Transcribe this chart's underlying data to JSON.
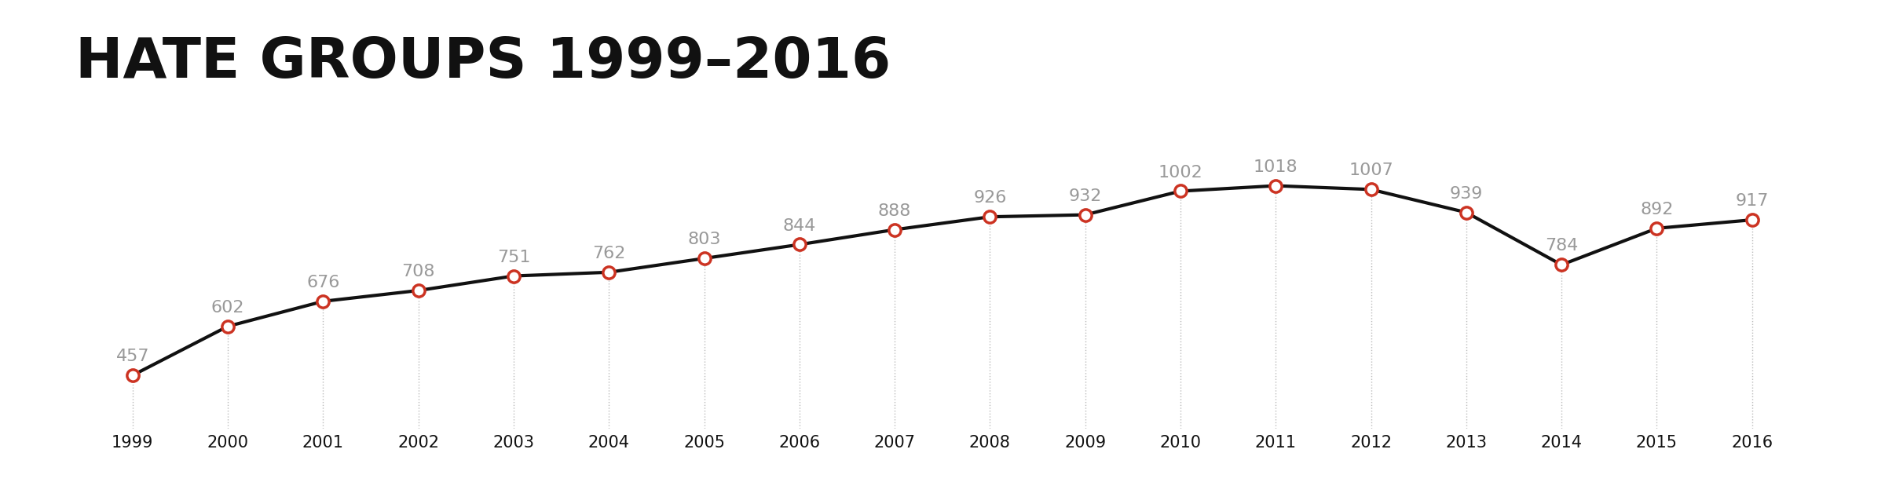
{
  "title": "HATE GROUPS 1999–2016",
  "years": [
    1999,
    2000,
    2001,
    2002,
    2003,
    2004,
    2005,
    2006,
    2007,
    2008,
    2009,
    2010,
    2011,
    2012,
    2013,
    2014,
    2015,
    2016
  ],
  "values": [
    457,
    602,
    676,
    708,
    751,
    762,
    803,
    844,
    888,
    926,
    932,
    1002,
    1018,
    1007,
    939,
    784,
    892,
    917
  ],
  "line_color": "#111111",
  "marker_face_color": "#cc3322",
  "marker_edge_color": "#cc3322",
  "label_color": "#999999",
  "background_color": "#ffffff",
  "title_color": "#111111",
  "title_fontsize": 52,
  "label_fontsize": 16,
  "tick_fontsize": 15,
  "ylim": [
    300,
    1150
  ],
  "xlim": [
    1998.4,
    2017.0
  ]
}
